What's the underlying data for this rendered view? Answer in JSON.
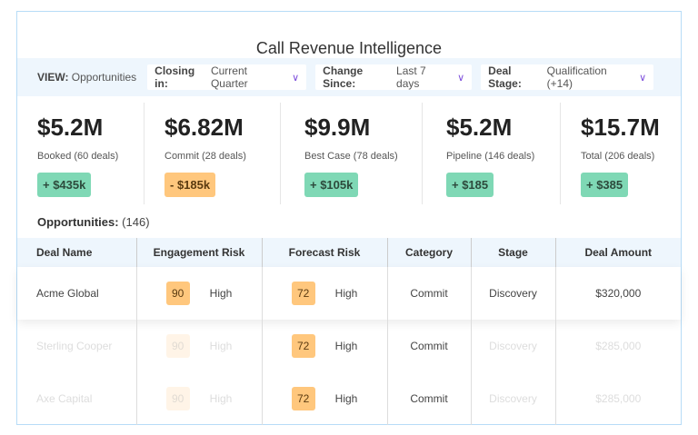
{
  "title": "Call Revenue Intelligence",
  "filters": {
    "view_label": "VIEW:",
    "view_value": "Opportunities",
    "items": [
      {
        "label": "Closing in:",
        "value": "Current Quarter"
      },
      {
        "label": "Change Since:",
        "value": "Last 7 days"
      },
      {
        "label": "Deal Stage:",
        "value": "Qualification (+14)"
      }
    ]
  },
  "stats": [
    {
      "value": "$5.2M",
      "label": "Booked (60 deals)",
      "change": "+ $435k",
      "trend": "up"
    },
    {
      "value": "$6.82M",
      "label": "Commit (28 deals)",
      "change": "- $185k",
      "trend": "down"
    },
    {
      "value": "$9.9M",
      "label": "Best Case (78 deals)",
      "change": "+ $105k",
      "trend": "up"
    },
    {
      "value": "$5.2M",
      "label": "Pipeline (146 deals)",
      "change": "+ $185",
      "trend": "up"
    },
    {
      "value": "$15.7M",
      "label": "Total (206 deals)",
      "change": "+ $385",
      "trend": "up"
    }
  ],
  "opportunities": {
    "label": "Opportunities:",
    "count": "(146)"
  },
  "table": {
    "headers": [
      "Deal Name",
      "Engagement Risk",
      "Forecast Risk",
      "Category",
      "Stage",
      "Deal Amount"
    ],
    "rows": [
      {
        "name": "Acme Global",
        "eng_score": "90",
        "eng_level": "High",
        "fc_score": "72",
        "fc_level": "High",
        "category": "Commit",
        "stage": "Discovery",
        "amount": "$320,000"
      },
      {
        "name": "Sterling Cooper",
        "eng_score": "90",
        "eng_level": "High",
        "fc_score": "72",
        "fc_level": "High",
        "category": "Commit",
        "stage": "Discovery",
        "amount": "$285,000"
      },
      {
        "name": "Axe Capital",
        "eng_score": "90",
        "eng_level": "High",
        "fc_score": "72",
        "fc_level": "High",
        "category": "Commit",
        "stage": "Discovery",
        "amount": "$285,000"
      }
    ]
  }
}
